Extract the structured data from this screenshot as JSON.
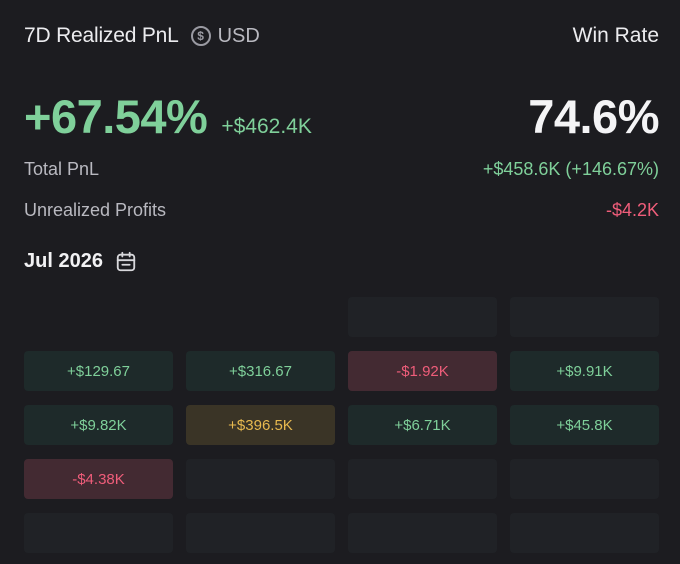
{
  "header": {
    "title": "7D Realized PnL",
    "currency_icon": "usd-coin-icon",
    "currency": "USD",
    "win_rate_label": "Win Rate"
  },
  "summary": {
    "realized_pct": "+67.54%",
    "realized_usd": "+$462.4K",
    "win_rate": "74.6%"
  },
  "stats": [
    {
      "label": "Total PnL",
      "value": "+$458.6K (+146.67%)",
      "tone": "pos"
    },
    {
      "label": "Unrealized Profits",
      "value": "-$4.2K",
      "tone": "neg"
    }
  ],
  "calendar": {
    "month": "Jul 2026",
    "icon": "calendar-icon",
    "colors": {
      "positive": "#7fd09a",
      "negative": "#ef5d7a",
      "highlight": "#e7b94f"
    },
    "cells": [
      {
        "text": "",
        "tone": "hidden"
      },
      {
        "text": "",
        "tone": "hidden"
      },
      {
        "text": "",
        "tone": "empty"
      },
      {
        "text": "",
        "tone": "empty"
      },
      {
        "text": "+$129.67",
        "tone": "pos"
      },
      {
        "text": "+$316.67",
        "tone": "pos"
      },
      {
        "text": "-$1.92K",
        "tone": "neg"
      },
      {
        "text": "+$9.91K",
        "tone": "pos"
      },
      {
        "text": "+$9.82K",
        "tone": "pos"
      },
      {
        "text": "+$396.5K",
        "tone": "gold"
      },
      {
        "text": "+$6.71K",
        "tone": "pos"
      },
      {
        "text": "+$45.8K",
        "tone": "pos"
      },
      {
        "text": "-$4.38K",
        "tone": "neg"
      },
      {
        "text": "",
        "tone": "empty"
      },
      {
        "text": "",
        "tone": "empty"
      },
      {
        "text": "",
        "tone": "empty"
      },
      {
        "text": "",
        "tone": "empty"
      },
      {
        "text": "",
        "tone": "empty"
      },
      {
        "text": "",
        "tone": "empty"
      },
      {
        "text": "",
        "tone": "empty"
      }
    ]
  }
}
